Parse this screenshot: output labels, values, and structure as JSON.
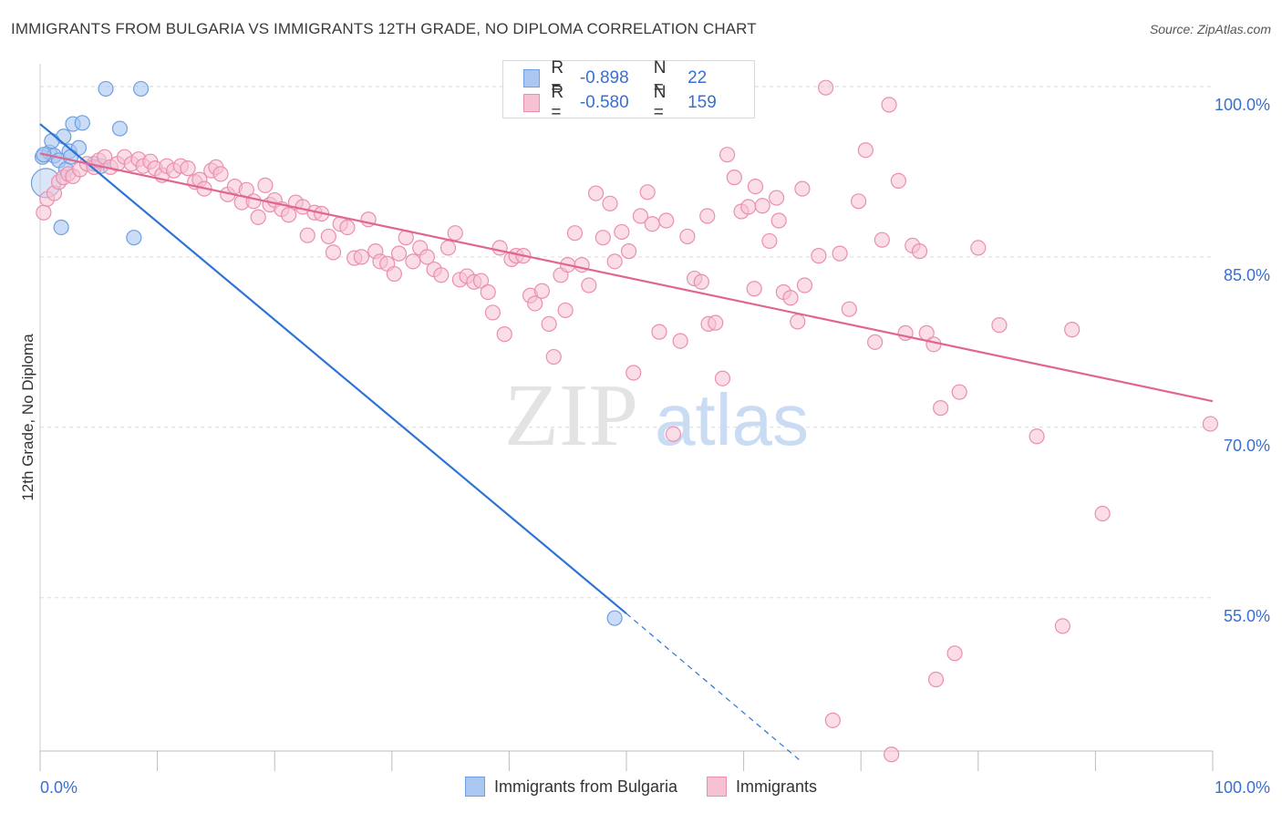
{
  "title": "IMMIGRANTS FROM BULGARIA VS IMMIGRANTS 12TH GRADE, NO DIPLOMA CORRELATION CHART",
  "source": "Source: ZipAtlas.com",
  "watermark": {
    "zip": "ZIP",
    "atlas": "atlas"
  },
  "legend_top": {
    "rows": [
      {
        "r_label": "R =",
        "r_value": "-0.898",
        "n_label": "N =",
        "n_value": "22"
      },
      {
        "r_label": "R =",
        "r_value": "-0.580",
        "n_label": "N =",
        "n_value": "159"
      }
    ]
  },
  "legend_bottom": [
    "Immigrants from Bulgaria",
    "Immigrants"
  ],
  "colors": {
    "blue_fill": "#a9c7f0",
    "blue_stroke": "#6e9fe0",
    "blue_line": "#2e74d6",
    "pink_fill": "#f6c1d2",
    "pink_stroke": "#ea8fae",
    "pink_line": "#e0658f",
    "tick_label": "#3a6fd0",
    "grid": "#dcdcdc"
  },
  "chart_data": {
    "type": "scatter",
    "title": "IMMIGRANTS FROM BULGARIA VS IMMIGRANTS 12TH GRADE, NO DIPLOMA CORRELATION CHART",
    "xlabel": "",
    "ylabel": "12th Grade, No Diploma",
    "xlim": [
      0,
      100
    ],
    "ylim": [
      41.5,
      102
    ],
    "x_tick_labels": [
      "0.0%",
      "100.0%"
    ],
    "y_ticks": [
      55,
      70,
      85,
      100
    ],
    "y_tick_labels": [
      "55.0%",
      "70.0%",
      "85.0%",
      "100.0%"
    ],
    "grid": true,
    "series": [
      {
        "name": "Immigrants from Bulgaria",
        "color": "#6e9fe0",
        "r": -0.898,
        "n": 22,
        "trend": {
          "x": [
            0,
            50
          ],
          "y": [
            96.7,
            53.6
          ],
          "dashed_to": [
            65,
            40.5
          ]
        },
        "points": [
          [
            0.2,
            93.8
          ],
          [
            0.5,
            91.5
          ],
          [
            0.8,
            94.2
          ],
          [
            1.2,
            93.9
          ],
          [
            1.6,
            93.5
          ],
          [
            1.8,
            87.6
          ],
          [
            2.0,
            95.6
          ],
          [
            2.2,
            92.7
          ],
          [
            2.5,
            94.3
          ],
          [
            2.8,
            96.7
          ],
          [
            3.3,
            94.6
          ],
          [
            3.6,
            96.8
          ],
          [
            4.6,
            93.2
          ],
          [
            5.2,
            93.0
          ],
          [
            5.6,
            99.8
          ],
          [
            6.8,
            96.3
          ],
          [
            8.0,
            86.7
          ],
          [
            8.6,
            99.8
          ],
          [
            49.0,
            53.2
          ],
          [
            0.3,
            94.0
          ],
          [
            1.0,
            95.2
          ],
          [
            2.6,
            93.8
          ]
        ]
      },
      {
        "name": "Immigrants",
        "color": "#ea8fae",
        "r": -0.58,
        "n": 159,
        "trend": {
          "x": [
            0,
            100
          ],
          "y": [
            94.1,
            72.3
          ]
        },
        "points": [
          [
            0.3,
            88.9
          ],
          [
            0.6,
            90.1
          ],
          [
            1.2,
            90.6
          ],
          [
            1.6,
            91.6
          ],
          [
            2.0,
            92.0
          ],
          [
            2.4,
            92.3
          ],
          [
            2.8,
            92.1
          ],
          [
            3.4,
            92.7
          ],
          [
            4.0,
            93.2
          ],
          [
            4.6,
            92.9
          ],
          [
            5.0,
            93.5
          ],
          [
            5.5,
            93.8
          ],
          [
            6.0,
            92.9
          ],
          [
            6.6,
            93.2
          ],
          [
            7.2,
            93.8
          ],
          [
            7.8,
            93.2
          ],
          [
            8.4,
            93.6
          ],
          [
            8.8,
            93.0
          ],
          [
            9.4,
            93.4
          ],
          [
            9.8,
            92.8
          ],
          [
            10.4,
            92.2
          ],
          [
            10.8,
            93.0
          ],
          [
            11.4,
            92.6
          ],
          [
            12.0,
            93.0
          ],
          [
            12.6,
            92.8
          ],
          [
            13.2,
            91.6
          ],
          [
            13.6,
            91.8
          ],
          [
            14.0,
            91.0
          ],
          [
            14.6,
            92.6
          ],
          [
            15.0,
            92.9
          ],
          [
            15.4,
            92.3
          ],
          [
            16.0,
            90.5
          ],
          [
            16.6,
            91.2
          ],
          [
            17.2,
            89.8
          ],
          [
            17.6,
            90.9
          ],
          [
            18.2,
            89.9
          ],
          [
            18.6,
            88.5
          ],
          [
            19.2,
            91.3
          ],
          [
            19.6,
            89.6
          ],
          [
            20.0,
            90.0
          ],
          [
            20.6,
            89.2
          ],
          [
            21.2,
            88.7
          ],
          [
            21.8,
            89.8
          ],
          [
            22.4,
            89.4
          ],
          [
            22.8,
            86.9
          ],
          [
            23.4,
            88.9
          ],
          [
            24.0,
            88.8
          ],
          [
            24.6,
            86.8
          ],
          [
            25.0,
            85.4
          ],
          [
            25.6,
            87.9
          ],
          [
            26.2,
            87.6
          ],
          [
            26.8,
            84.9
          ],
          [
            27.4,
            85.0
          ],
          [
            28.0,
            88.3
          ],
          [
            28.6,
            85.5
          ],
          [
            29.0,
            84.6
          ],
          [
            29.6,
            84.4
          ],
          [
            30.2,
            83.5
          ],
          [
            30.6,
            85.3
          ],
          [
            31.2,
            86.7
          ],
          [
            31.8,
            84.6
          ],
          [
            32.4,
            85.8
          ],
          [
            33.0,
            85.0
          ],
          [
            33.6,
            83.9
          ],
          [
            34.2,
            83.4
          ],
          [
            34.8,
            85.8
          ],
          [
            35.4,
            87.1
          ],
          [
            35.8,
            83.0
          ],
          [
            36.4,
            83.3
          ],
          [
            37.0,
            82.8
          ],
          [
            37.6,
            82.9
          ],
          [
            38.2,
            81.9
          ],
          [
            38.6,
            80.1
          ],
          [
            39.2,
            85.8
          ],
          [
            39.6,
            78.2
          ],
          [
            40.2,
            84.8
          ],
          [
            40.6,
            85.1
          ],
          [
            41.2,
            85.1
          ],
          [
            41.8,
            81.6
          ],
          [
            42.2,
            80.9
          ],
          [
            42.8,
            82.0
          ],
          [
            43.4,
            79.1
          ],
          [
            43.8,
            76.2
          ],
          [
            44.4,
            83.4
          ],
          [
            45.0,
            84.3
          ],
          [
            45.6,
            87.1
          ],
          [
            46.2,
            84.3
          ],
          [
            46.8,
            82.5
          ],
          [
            47.4,
            90.6
          ],
          [
            48.0,
            86.7
          ],
          [
            48.6,
            89.7
          ],
          [
            49.0,
            84.6
          ],
          [
            49.6,
            87.2
          ],
          [
            50.2,
            85.5
          ],
          [
            50.6,
            74.8
          ],
          [
            51.2,
            88.6
          ],
          [
            51.8,
            90.7
          ],
          [
            52.2,
            87.9
          ],
          [
            52.8,
            78.4
          ],
          [
            53.4,
            88.2
          ],
          [
            54.0,
            69.4
          ],
          [
            54.6,
            77.6
          ],
          [
            55.2,
            86.8
          ],
          [
            55.8,
            83.1
          ],
          [
            56.4,
            82.8
          ],
          [
            57.0,
            79.1
          ],
          [
            57.6,
            79.2
          ],
          [
            58.2,
            74.3
          ],
          [
            58.6,
            94.0
          ],
          [
            59.2,
            92.0
          ],
          [
            59.8,
            89.0
          ],
          [
            60.4,
            89.4
          ],
          [
            61.0,
            91.2
          ],
          [
            61.6,
            89.5
          ],
          [
            62.2,
            86.4
          ],
          [
            62.8,
            90.2
          ],
          [
            63.4,
            81.9
          ],
          [
            64.0,
            81.4
          ],
          [
            64.6,
            79.3
          ],
          [
            65.2,
            82.5
          ],
          [
            66.4,
            85.1
          ],
          [
            67.0,
            99.9
          ],
          [
            68.2,
            85.3
          ],
          [
            69.0,
            80.4
          ],
          [
            69.8,
            89.9
          ],
          [
            70.4,
            94.4
          ],
          [
            71.2,
            77.5
          ],
          [
            71.8,
            86.5
          ],
          [
            72.4,
            98.4
          ],
          [
            73.2,
            91.7
          ],
          [
            73.8,
            78.3
          ],
          [
            74.4,
            86.0
          ],
          [
            75.0,
            85.5
          ],
          [
            75.6,
            78.3
          ],
          [
            76.2,
            77.3
          ],
          [
            76.8,
            71.7
          ],
          [
            78.4,
            73.1
          ],
          [
            80.0,
            85.8
          ],
          [
            81.8,
            79.0
          ],
          [
            85.0,
            69.2
          ],
          [
            88.0,
            78.6
          ],
          [
            90.6,
            62.4
          ],
          [
            87.2,
            52.5
          ],
          [
            78.0,
            50.1
          ],
          [
            76.4,
            47.8
          ],
          [
            67.6,
            44.2
          ],
          [
            72.6,
            41.2
          ],
          [
            65.0,
            91.0
          ],
          [
            63.0,
            88.2
          ],
          [
            60.9,
            82.2
          ],
          [
            56.9,
            88.6
          ],
          [
            44.8,
            80.3
          ],
          [
            99.8,
            70.3
          ]
        ]
      }
    ]
  }
}
